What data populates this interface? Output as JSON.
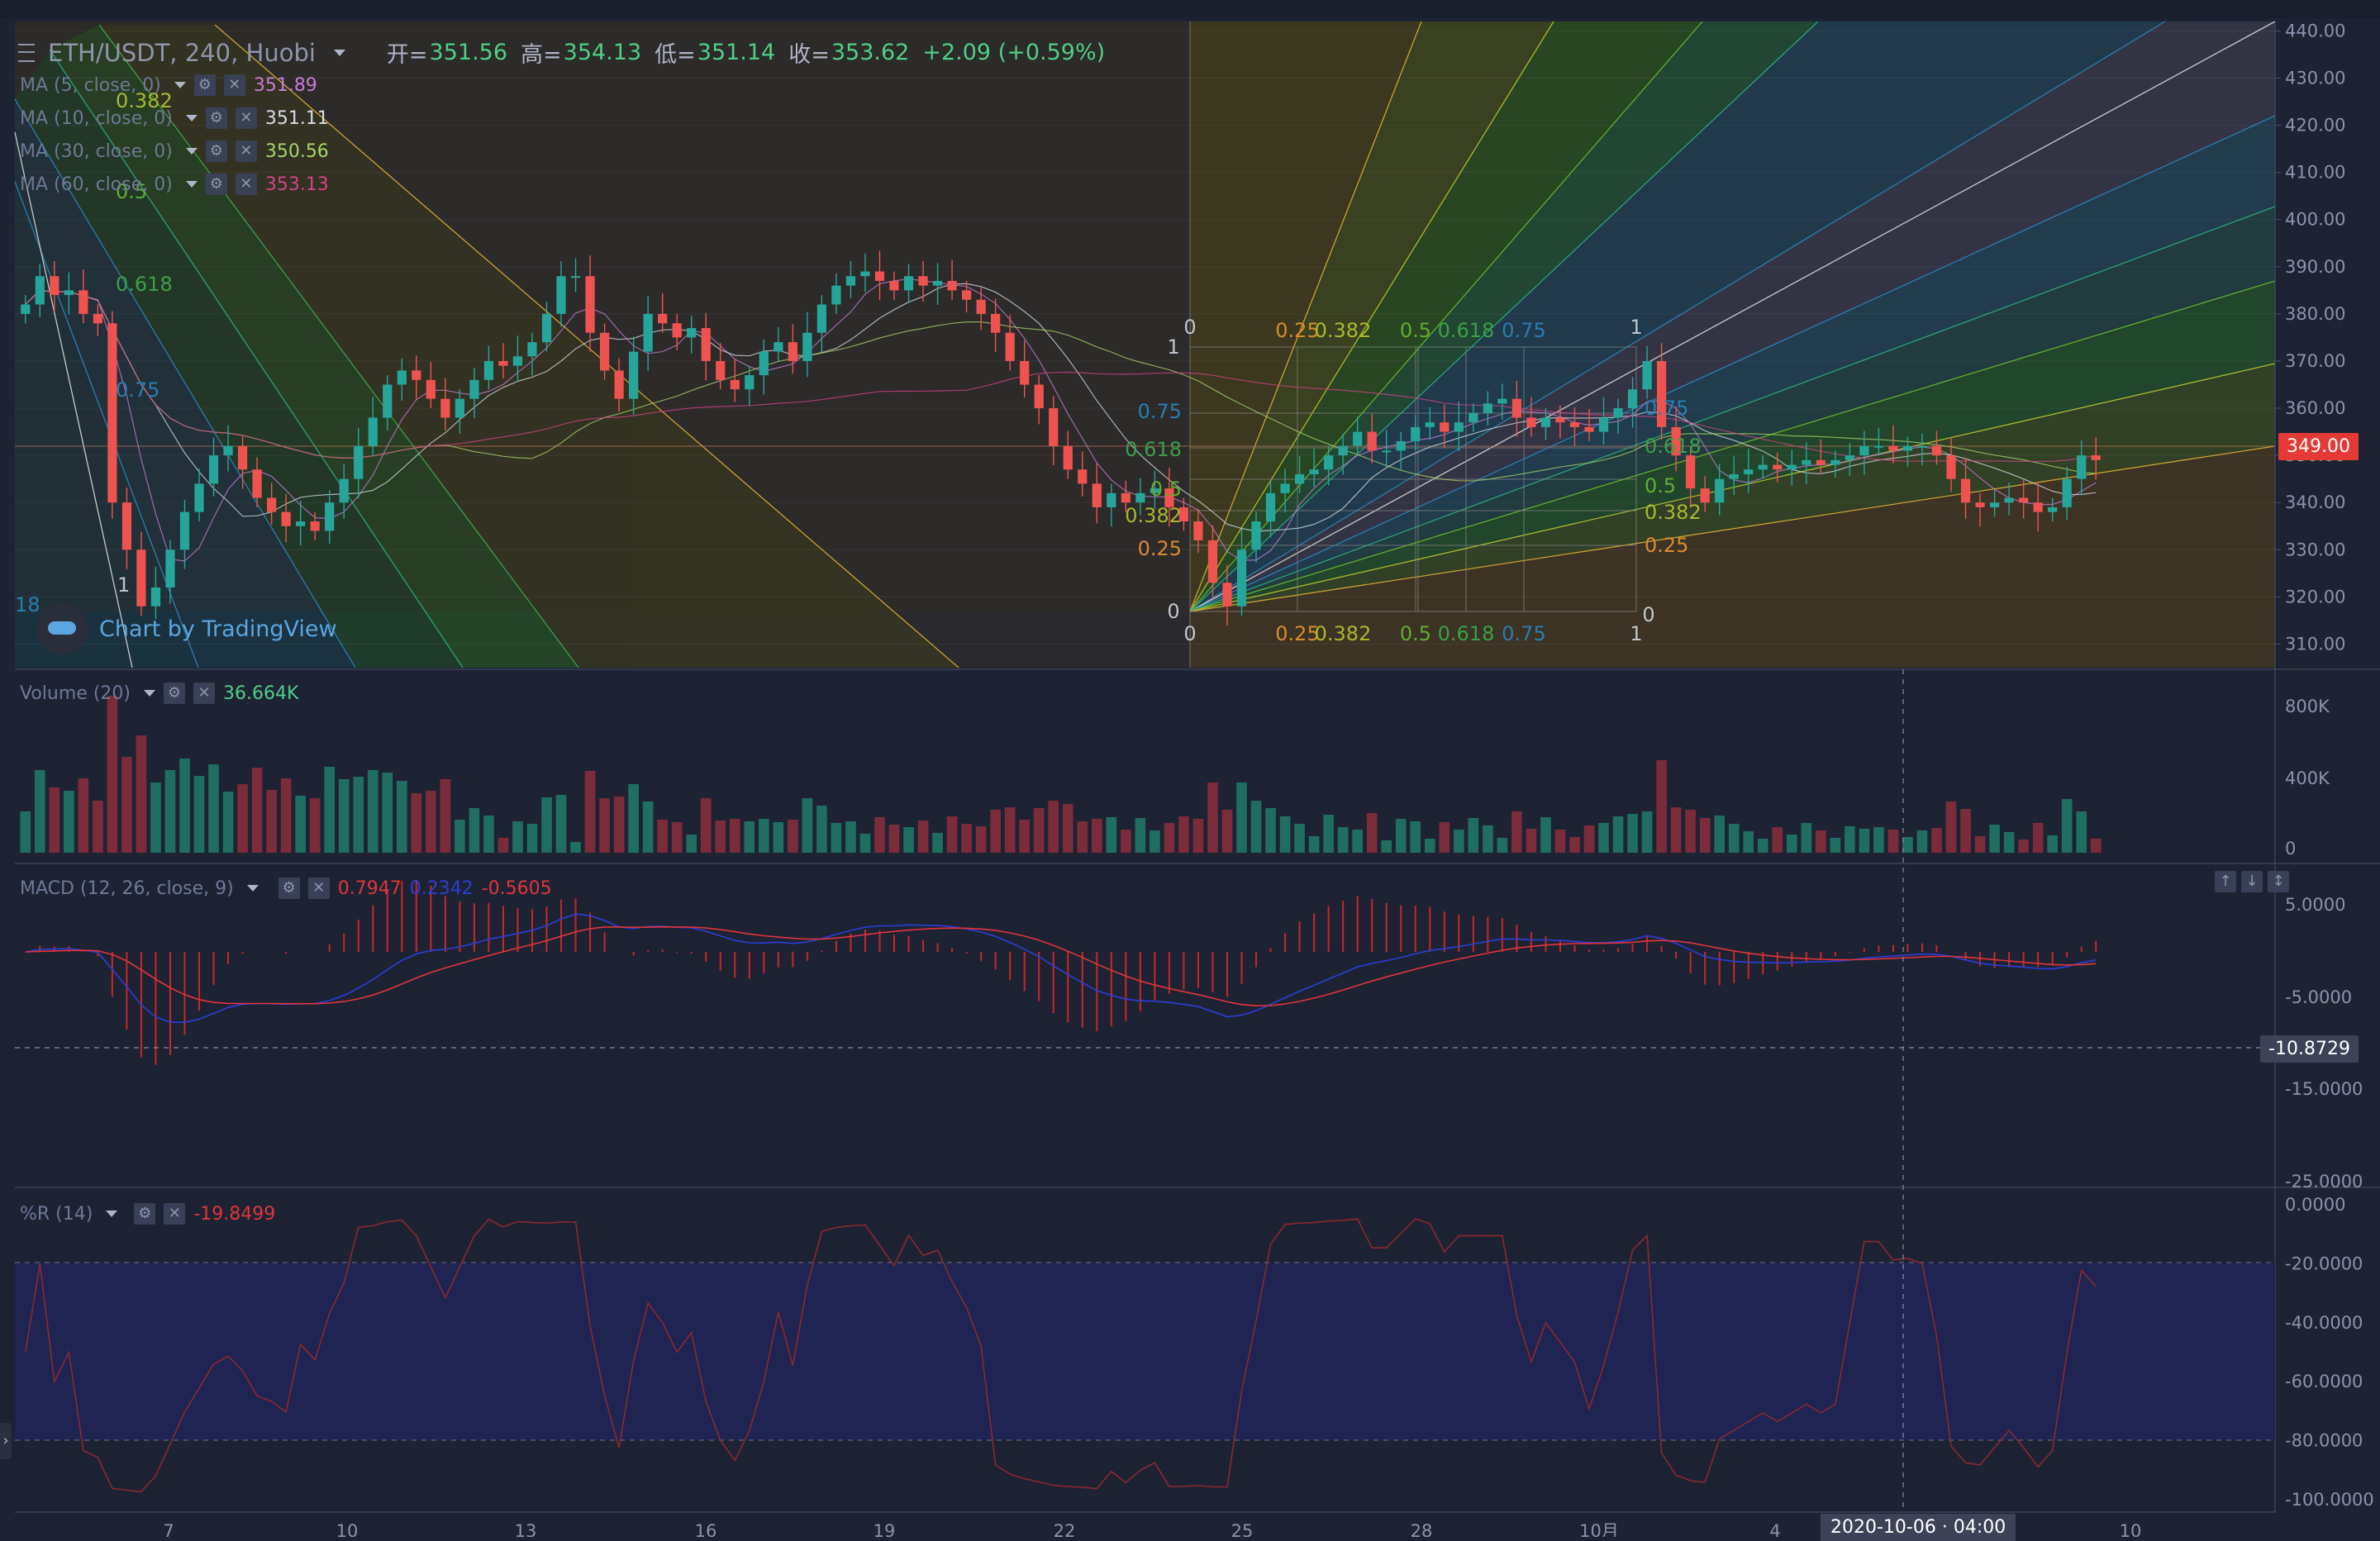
{
  "header": {
    "symbol": "ETH/USDT, 240, Huobi",
    "open_label": "开=",
    "open": "351.56",
    "high_label": "高=",
    "high": "354.13",
    "low_label": "低=",
    "low": "351.14",
    "close_label": "收=",
    "close": "353.62",
    "change": "+2.09 (+0.59%)"
  },
  "ma_legend": [
    {
      "label": "MA (5, close, 0)",
      "value": "351.89",
      "color": "#c77dd6"
    },
    {
      "label": "MA (10, close, 0)",
      "value": "351.11",
      "color": "#d8dce6"
    },
    {
      "label": "MA (30, close, 0)",
      "value": "350.56",
      "color": "#a6d46a"
    },
    {
      "label": "MA (60, close, 0)",
      "value": "353.13",
      "color": "#d0458a"
    }
  ],
  "watermark": "Chart by TradingView",
  "current_price": "349.00",
  "volume": {
    "label": "Volume (20)",
    "value": "36.664K",
    "axis": [
      "800K",
      "400K",
      "0"
    ]
  },
  "macd": {
    "label": "MACD (12, 26, close, 9)",
    "v1": "0.7947",
    "v2": "0.2342",
    "v3": "-0.5605",
    "current": "-10.8729",
    "axis": [
      "5.0000",
      "-5.0000",
      "-15.0000",
      "-25.0000"
    ]
  },
  "wr": {
    "label": "%R (14)",
    "value": "-19.8499",
    "axis": [
      "0.0000",
      "-20.0000",
      "-40.0000",
      "-60.0000",
      "-80.0000",
      "-100.0000"
    ]
  },
  "crosshair_time": "2020-10-06 · 04:00",
  "fib_labels": {
    "levels": [
      "0.25",
      "0.382",
      "0.5",
      "0.618",
      "0.75"
    ],
    "zero": "0",
    "one": "1",
    "left_fan": [
      "0.382",
      "0.5",
      "0.618",
      "0.75",
      "18",
      "1"
    ]
  },
  "chart_data": {
    "type": "candlestick",
    "symbol": "ETH/USDT",
    "interval": "240",
    "exchange": "Huobi",
    "price_axis": [
      "440.00",
      "430.00",
      "420.00",
      "410.00",
      "400.00",
      "390.00",
      "380.00",
      "370.00",
      "360.00",
      "350.00",
      "340.00",
      "330.00",
      "320.00",
      "310.00"
    ],
    "price_range": [
      305,
      442
    ],
    "x_ticks": [
      "7",
      "10",
      "13",
      "16",
      "19",
      "22",
      "25",
      "28",
      "10月",
      "4",
      "7",
      "10"
    ],
    "close_series": [
      382,
      388,
      384,
      385,
      380,
      378,
      340,
      330,
      318,
      322,
      330,
      338,
      344,
      350,
      352,
      347,
      341,
      338,
      335,
      336,
      334,
      340,
      345,
      352,
      358,
      365,
      368,
      366,
      362,
      358,
      362,
      366,
      370,
      369,
      371,
      374,
      380,
      388,
      388,
      376,
      368,
      362,
      372,
      380,
      378,
      375,
      377,
      370,
      366,
      364,
      367,
      372,
      374,
      370,
      376,
      382,
      386,
      388,
      389,
      387,
      385,
      388,
      386,
      387,
      385,
      383,
      380,
      376,
      370,
      365,
      360,
      352,
      347,
      344,
      339,
      342,
      340,
      342,
      343,
      339,
      336,
      332,
      323,
      318,
      330,
      336,
      342,
      344,
      346,
      347,
      350,
      352,
      355,
      351,
      351,
      353,
      356,
      357,
      355,
      357,
      359,
      361,
      362,
      358,
      356,
      358,
      357,
      356,
      355,
      358,
      360,
      364,
      370,
      356,
      350,
      343,
      340,
      345,
      346,
      347,
      348,
      347,
      348,
      349,
      348,
      349,
      350,
      352,
      352,
      351,
      352,
      352,
      350,
      345,
      340,
      339,
      340,
      341,
      340,
      338,
      339,
      345,
      350,
      349
    ]
  }
}
